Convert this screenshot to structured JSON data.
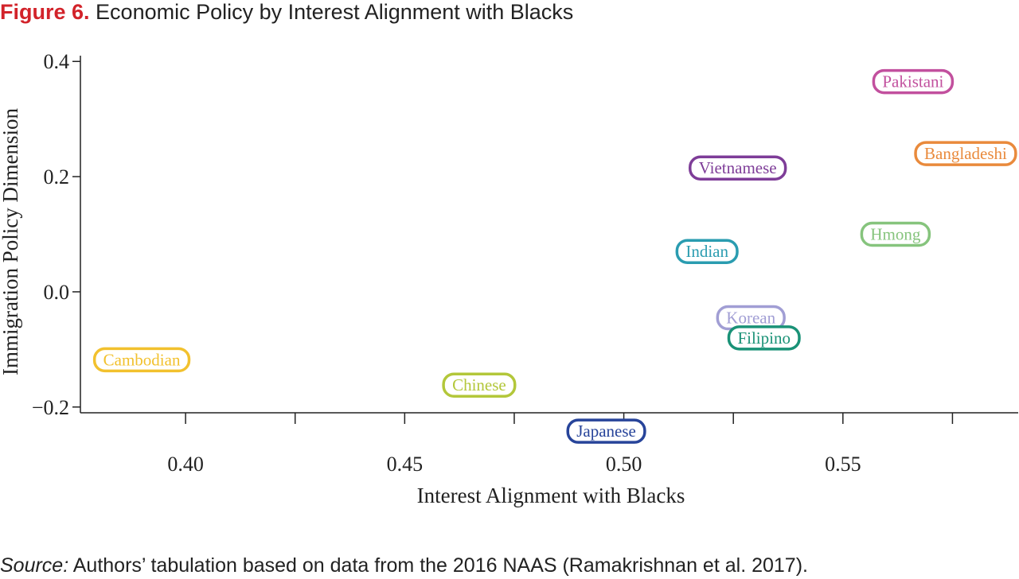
{
  "figure": {
    "number": "Figure 6.",
    "title": "Economic Policy by Interest Alignment with Blacks"
  },
  "source": {
    "label": "Source:",
    "text": " Authors’ tabulation based on data from the 2016 NAAS (Ramakrishnan et al. 2017)."
  },
  "chart_data": {
    "type": "scatter",
    "xlabel": "Interest Alignment with Blacks",
    "ylabel": "Immigration Policy Dimension",
    "xlim": [
      0.376,
      0.59
    ],
    "ylim": [
      -0.21,
      0.41
    ],
    "xticks": [
      0.4,
      0.45,
      0.5,
      0.55
    ],
    "xtick_labels": [
      "0.40",
      "0.45",
      "0.50",
      "0.55"
    ],
    "yticks": [
      0.4,
      0.2,
      0.0,
      -0.2
    ],
    "ytick_labels": [
      "0.4",
      "0.2",
      "0.0",
      "−0.2"
    ],
    "grid": false,
    "points": [
      {
        "label": "Pakistani",
        "x": 0.566,
        "y": 0.365,
        "color": "#c2509e"
      },
      {
        "label": "Bangladeshi",
        "x": 0.578,
        "y": 0.24,
        "color": "#e98a3c"
      },
      {
        "label": "Vietnamese",
        "x": 0.526,
        "y": 0.215,
        "color": "#7e3d98"
      },
      {
        "label": "Hmong",
        "x": 0.562,
        "y": 0.1,
        "color": "#86c47d"
      },
      {
        "label": "Indian",
        "x": 0.519,
        "y": 0.07,
        "color": "#2a9cb0"
      },
      {
        "label": "Korean",
        "x": 0.529,
        "y": -0.045,
        "color": "#a19ed4"
      },
      {
        "label": "Filipino",
        "x": 0.532,
        "y": -0.08,
        "color": "#1a9277"
      },
      {
        "label": "Cambodian",
        "x": 0.39,
        "y": -0.118,
        "color": "#f2c12e"
      },
      {
        "label": "Chinese",
        "x": 0.467,
        "y": -0.162,
        "color": "#b3c73a"
      },
      {
        "label": "Japanese",
        "x": 0.496,
        "y": -0.242,
        "color": "#27449a"
      }
    ]
  }
}
